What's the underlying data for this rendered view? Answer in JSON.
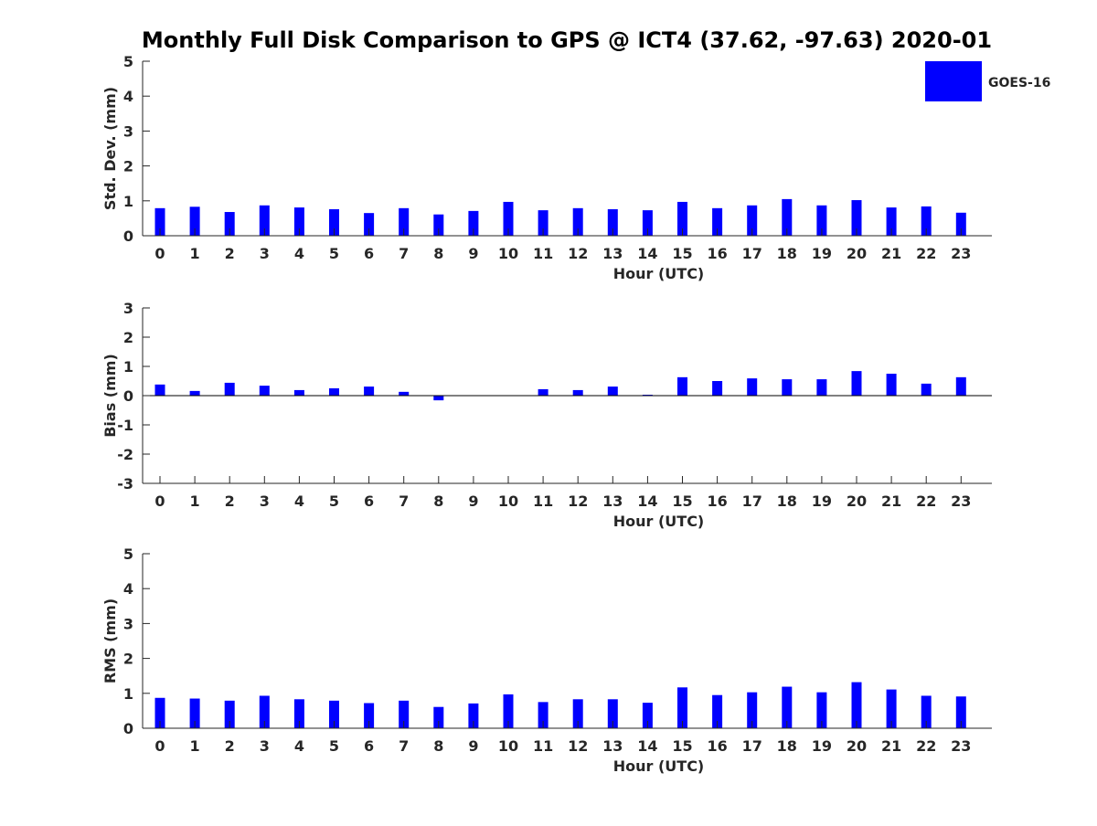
{
  "title": "Monthly Full Disk Comparison to GPS @ ICT4 (37.62, -97.63) 2020-01",
  "legend": {
    "label": "GOES-16",
    "color": "#0000ff"
  },
  "chart_data": [
    {
      "type": "bar",
      "title": "",
      "xlabel": "Hour (UTC)",
      "ylabel": "Std. Dev. (mm)",
      "ylim": [
        0,
        5
      ],
      "yticks": [
        0,
        1,
        2,
        3,
        4,
        5
      ],
      "categories": [
        "0",
        "1",
        "2",
        "3",
        "4",
        "5",
        "6",
        "7",
        "8",
        "9",
        "10",
        "11",
        "12",
        "13",
        "14",
        "15",
        "16",
        "17",
        "18",
        "19",
        "20",
        "21",
        "22",
        "23"
      ],
      "series": [
        {
          "name": "GOES-16",
          "color": "#0000ff",
          "values": [
            0.79,
            0.83,
            0.68,
            0.87,
            0.81,
            0.76,
            0.65,
            0.79,
            0.61,
            0.71,
            0.97,
            0.73,
            0.79,
            0.76,
            0.73,
            0.97,
            0.79,
            0.87,
            1.05,
            0.87,
            1.02,
            0.81,
            0.84,
            0.66
          ]
        }
      ],
      "grid": false,
      "legend_position": "top-right"
    },
    {
      "type": "bar",
      "title": "",
      "xlabel": "Hour (UTC)",
      "ylabel": "Bias (mm)",
      "ylim": [
        -3,
        3
      ],
      "yticks": [
        -3,
        -2,
        -1,
        0,
        1,
        2,
        3
      ],
      "categories": [
        "0",
        "1",
        "2",
        "3",
        "4",
        "5",
        "6",
        "7",
        "8",
        "9",
        "10",
        "11",
        "12",
        "13",
        "14",
        "15",
        "16",
        "17",
        "18",
        "19",
        "20",
        "21",
        "22",
        "23"
      ],
      "series": [
        {
          "name": "GOES-16",
          "color": "#0000ff",
          "values": [
            0.38,
            0.16,
            0.44,
            0.34,
            0.19,
            0.25,
            0.31,
            0.13,
            -0.16,
            0.0,
            0.0,
            0.22,
            0.19,
            0.31,
            0.03,
            0.63,
            0.5,
            0.59,
            0.56,
            0.56,
            0.84,
            0.75,
            0.41,
            0.63
          ]
        }
      ],
      "grid": false
    },
    {
      "type": "bar",
      "title": "",
      "xlabel": "Hour (UTC)",
      "ylabel": "RMS (mm)",
      "ylim": [
        0,
        5
      ],
      "yticks": [
        0,
        1,
        2,
        3,
        4,
        5
      ],
      "categories": [
        "0",
        "1",
        "2",
        "3",
        "4",
        "5",
        "6",
        "7",
        "8",
        "9",
        "10",
        "11",
        "12",
        "13",
        "14",
        "15",
        "16",
        "17",
        "18",
        "19",
        "20",
        "21",
        "22",
        "23"
      ],
      "series": [
        {
          "name": "GOES-16",
          "color": "#0000ff",
          "values": [
            0.87,
            0.85,
            0.79,
            0.93,
            0.83,
            0.79,
            0.72,
            0.79,
            0.61,
            0.71,
            0.97,
            0.75,
            0.83,
            0.83,
            0.73,
            1.17,
            0.95,
            1.03,
            1.19,
            1.03,
            1.32,
            1.11,
            0.93,
            0.91
          ]
        }
      ],
      "grid": false
    }
  ]
}
